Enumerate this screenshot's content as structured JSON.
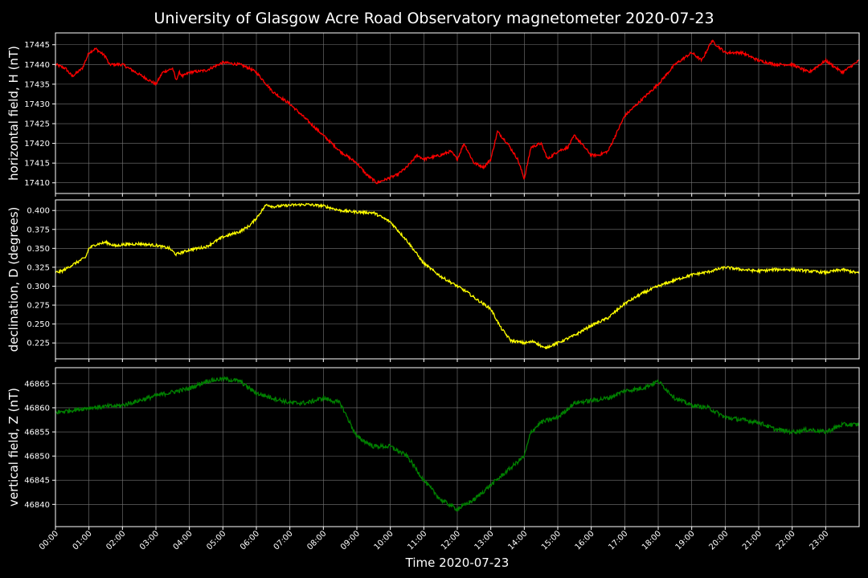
{
  "chart_data": {
    "type": "line",
    "title": "University of Glasgow Acre Road Observatory magnetometer 2020-07-23",
    "xlabel": "Time 2020-07-23",
    "x_tick_labels": [
      "00:00",
      "01:00",
      "02:00",
      "03:00",
      "04:00",
      "05:00",
      "06:00",
      "07:00",
      "08:00",
      "09:00",
      "10:00",
      "11:00",
      "12:00",
      "13:00",
      "14:00",
      "15:00",
      "16:00",
      "17:00",
      "18:00",
      "19:00",
      "20:00",
      "21:00",
      "22:00",
      "23:00"
    ],
    "xlim_hours": [
      0,
      24
    ],
    "grid": true,
    "background": "#000000",
    "grid_color": "#777777",
    "panels": [
      {
        "ylabel": "horizontal field, H (nT)",
        "color": "#ff0000",
        "ylim": [
          17407.3,
          17448
        ],
        "yticks": [
          17410,
          17415,
          17420,
          17425,
          17430,
          17435,
          17440,
          17445
        ],
        "tick_decimals": 0,
        "noise": 0.35,
        "hours": [
          0,
          0.3,
          0.5,
          0.8,
          1.0,
          1.2,
          1.5,
          1.6,
          2.0,
          2.4,
          2.6,
          3.0,
          3.2,
          3.5,
          3.6,
          3.7,
          3.8,
          4.0,
          4.5,
          5.0,
          5.5,
          5.8,
          6.0,
          6.3,
          6.5,
          7.0,
          7.5,
          8.0,
          8.5,
          9.0,
          9.3,
          9.6,
          9.9,
          10.2,
          10.5,
          10.8,
          11.0,
          11.5,
          11.8,
          12.0,
          12.2,
          12.5,
          12.8,
          13.0,
          13.2,
          13.5,
          13.8,
          14.0,
          14.2,
          14.5,
          14.7,
          15.0,
          15.3,
          15.5,
          15.8,
          16.0,
          16.2,
          16.5,
          17.0,
          17.5,
          18.0,
          18.5,
          19.0,
          19.3,
          19.6,
          20.0,
          20.5,
          21.0,
          21.5,
          22.0,
          22.5,
          23.0,
          23.5,
          24.0
        ],
        "values": [
          17440,
          17439,
          17437,
          17439,
          17443,
          17444,
          17442,
          17440,
          17440,
          17438,
          17437,
          17435,
          17438,
          17439,
          17436,
          17438,
          17437,
          17438,
          17438.5,
          17440.5,
          17440,
          17439,
          17438,
          17435,
          17433,
          17430,
          17426,
          17422,
          17418,
          17415,
          17412,
          17410,
          17411,
          17412,
          17414,
          17417,
          17416,
          17417,
          17418,
          17416,
          17420,
          17415,
          17414,
          17416,
          17423,
          17420,
          17416,
          17411,
          17419,
          17420,
          17416,
          17418,
          17419,
          17422,
          17419,
          17417,
          17417,
          17418,
          17427,
          17431,
          17435,
          17440,
          17443,
          17441,
          17446,
          17443,
          17443,
          17441,
          17440,
          17440,
          17438,
          17441,
          17438,
          17441
        ]
      },
      {
        "ylabel": "declination, D (degrees)",
        "color": "#ffff00",
        "ylim": [
          0.204,
          0.414
        ],
        "yticks": [
          0.225,
          0.25,
          0.275,
          0.3,
          0.325,
          0.35,
          0.375,
          0.4
        ],
        "tick_decimals": 3,
        "noise": 0.0018,
        "hours": [
          0,
          0.2,
          0.5,
          0.9,
          1.0,
          1.2,
          1.5,
          1.8,
          2.0,
          2.5,
          3.0,
          3.4,
          3.6,
          4.0,
          4.5,
          5.0,
          5.5,
          5.8,
          6.0,
          6.3,
          6.5,
          7.0,
          7.5,
          8.0,
          8.5,
          9.0,
          9.5,
          10.0,
          10.5,
          11.0,
          11.5,
          12.0,
          12.3,
          12.5,
          13.0,
          13.3,
          13.6,
          14.0,
          14.3,
          14.6,
          15.0,
          15.5,
          16.0,
          16.5,
          17.0,
          17.5,
          18.0,
          18.5,
          19.0,
          19.5,
          20.0,
          20.5,
          21.0,
          21.5,
          22.0,
          22.5,
          23.0,
          23.5,
          24.0
        ],
        "values": [
          0.318,
          0.32,
          0.328,
          0.338,
          0.35,
          0.355,
          0.358,
          0.353,
          0.355,
          0.356,
          0.354,
          0.35,
          0.342,
          0.348,
          0.352,
          0.365,
          0.372,
          0.38,
          0.39,
          0.408,
          0.405,
          0.407,
          0.408,
          0.406,
          0.4,
          0.398,
          0.397,
          0.385,
          0.36,
          0.33,
          0.313,
          0.3,
          0.292,
          0.285,
          0.27,
          0.245,
          0.228,
          0.225,
          0.227,
          0.218,
          0.225,
          0.235,
          0.248,
          0.258,
          0.277,
          0.29,
          0.3,
          0.308,
          0.315,
          0.319,
          0.325,
          0.322,
          0.32,
          0.322,
          0.322,
          0.32,
          0.318,
          0.322,
          0.317
        ]
      },
      {
        "ylabel": "vertical field, Z (nT)",
        "color": "#008000",
        "ylim": [
          46835.4,
          46868.3
        ],
        "yticks": [
          46840,
          46845,
          46850,
          46855,
          46860,
          46865
        ],
        "tick_decimals": 0,
        "noise": 0.45,
        "hours": [
          0,
          0.5,
          1.0,
          2.0,
          3.0,
          4.0,
          4.5,
          5.0,
          5.5,
          5.8,
          6.0,
          6.5,
          7.0,
          7.5,
          8.0,
          8.5,
          9.0,
          9.5,
          10.0,
          10.5,
          11.0,
          11.5,
          12.0,
          12.5,
          13.0,
          13.5,
          14.0,
          14.2,
          14.5,
          15.0,
          15.5,
          16.0,
          16.5,
          17.0,
          17.5,
          18.0,
          18.5,
          19.0,
          19.5,
          20.0,
          20.5,
          21.0,
          21.5,
          22.0,
          22.5,
          23.0,
          23.5,
          24.0
        ],
        "values": [
          46859,
          46859.5,
          46860,
          46860.5,
          46862.5,
          46864,
          46865.5,
          46866,
          46865.5,
          46864,
          46863,
          46862,
          46861,
          46861,
          46862,
          46861,
          46854,
          46852,
          46852,
          46850,
          46845,
          46841,
          46839,
          46841,
          46844,
          46847,
          46850,
          46855,
          46857,
          46858,
          46861,
          46861.5,
          46862,
          46863.5,
          46864,
          46865.5,
          46862,
          46860.5,
          46860,
          46858,
          46857.5,
          46857,
          46855.5,
          46855,
          46855.5,
          46855,
          46856.5,
          46856.5
        ]
      }
    ]
  }
}
